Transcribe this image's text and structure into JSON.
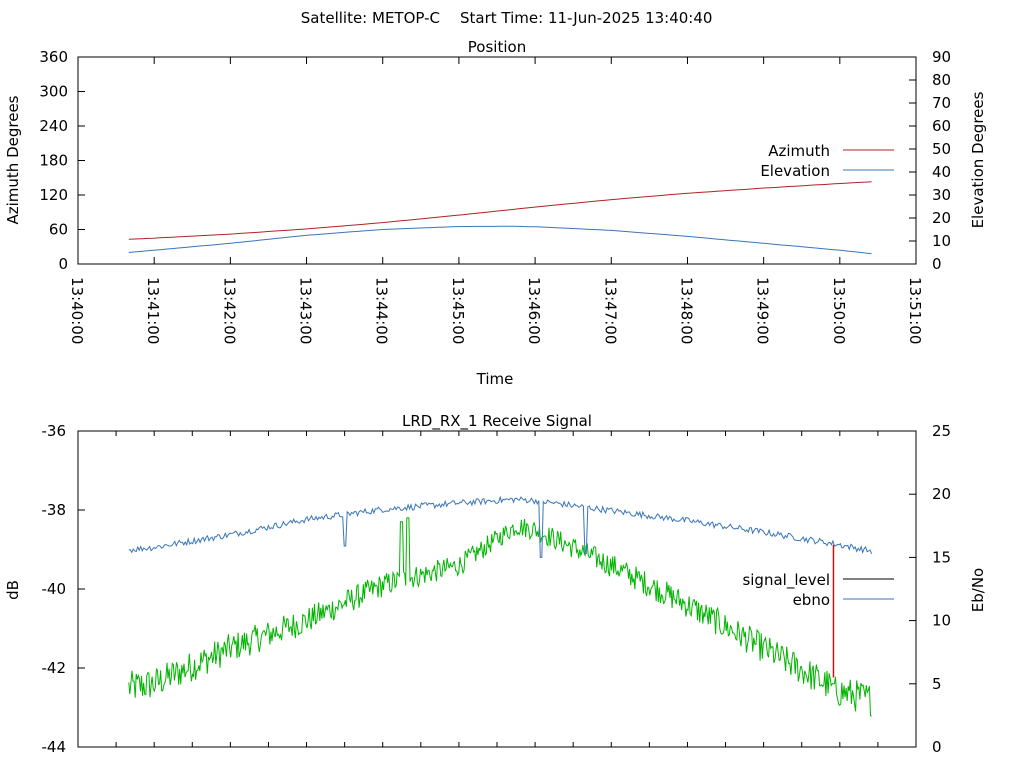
{
  "header": {
    "satellite_label": "Satellite: METOP-C",
    "start_time_label": "Start Time: 11-Jun-2025 13:40:40"
  },
  "colors": {
    "azimuth": "#b22222",
    "elevation": "#3a76b8",
    "signal_level": "#000000",
    "signal_green": "#00b400",
    "ebno": "#3a76b8",
    "signal_drop": "#cc1111"
  },
  "chart_data": [
    {
      "id": "position",
      "type": "line",
      "title": "Position",
      "xlabel": "Time",
      "ylabel": "Azimuth Degrees",
      "y2label": "Elevation Degrees",
      "x_ticks": [
        "13:40:00",
        "13:41:00",
        "13:42:00",
        "13:43:00",
        "13:44:00",
        "13:45:00",
        "13:46:00",
        "13:47:00",
        "13:48:00",
        "13:49:00",
        "13:50:00",
        "13:51:00"
      ],
      "xlim": [
        "13:40:00",
        "13:51:00"
      ],
      "ylim": [
        0,
        360
      ],
      "y_ticks": [
        0,
        60,
        120,
        180,
        240,
        300,
        360
      ],
      "y2lim": [
        0,
        90
      ],
      "y2_ticks": [
        0,
        10,
        20,
        30,
        40,
        50,
        60,
        70,
        80,
        90
      ],
      "legend_position": "right",
      "series": [
        {
          "name": "Azimuth",
          "axis": "y",
          "color": "#b22222",
          "points": [
            [
              "13:40:40",
              43
            ],
            [
              "13:41:00",
              45
            ],
            [
              "13:42:00",
              52
            ],
            [
              "13:43:00",
              61
            ],
            [
              "13:44:00",
              72
            ],
            [
              "13:45:00",
              85
            ],
            [
              "13:46:00",
              99
            ],
            [
              "13:47:00",
              112
            ],
            [
              "13:48:00",
              123
            ],
            [
              "13:49:00",
              132
            ],
            [
              "13:50:00",
              140
            ],
            [
              "13:50:25",
              143
            ]
          ]
        },
        {
          "name": "Elevation",
          "axis": "y2",
          "color": "#3a76b8",
          "points": [
            [
              "13:40:40",
              5
            ],
            [
              "13:41:00",
              6
            ],
            [
              "13:42:00",
              9
            ],
            [
              "13:43:00",
              12.5
            ],
            [
              "13:44:00",
              15
            ],
            [
              "13:45:00",
              16.3
            ],
            [
              "13:45:40",
              16.4
            ],
            [
              "13:46:00",
              16.2
            ],
            [
              "13:47:00",
              14.6
            ],
            [
              "13:48:00",
              12
            ],
            [
              "13:49:00",
              9
            ],
            [
              "13:50:00",
              6
            ],
            [
              "13:50:25",
              4.5
            ]
          ]
        }
      ]
    },
    {
      "id": "receive",
      "type": "line",
      "title": "LRD_RX_1 Receive Signal",
      "ylabel": "dB",
      "y2label": "Eb/No",
      "xlim": [
        "13:40:00",
        "13:51:00"
      ],
      "ylim": [
        -44,
        -36
      ],
      "y_ticks": [
        -44,
        -42,
        -40,
        -38,
        -36
      ],
      "y2lim": [
        0,
        25
      ],
      "y2_ticks": [
        0,
        5,
        10,
        15,
        20,
        25
      ],
      "x_minor_ticks": 21,
      "legend_position": "right",
      "series": [
        {
          "name": "signal_level",
          "axis": "y",
          "color": "#00b400",
          "legend_color": "#000000",
          "points": [
            [
              "13:40:40",
              -42.5
            ],
            [
              "13:41:00",
              -42.4
            ],
            [
              "13:42:00",
              -41.5
            ],
            [
              "13:43:00",
              -40.8
            ],
            [
              "13:44:00",
              -39.9
            ],
            [
              "13:45:00",
              -39.4
            ],
            [
              "13:45:45",
              -38.4
            ],
            [
              "13:46:00",
              -38.5
            ],
            [
              "13:47:00",
              -39.4
            ],
            [
              "13:48:00",
              -40.4
            ],
            [
              "13:49:00",
              -41.5
            ],
            [
              "13:50:00",
              -42.6
            ],
            [
              "13:50:25",
              -42.8
            ]
          ],
          "spikes": [
            {
              "time": "13:44:15",
              "value": -38.3
            },
            {
              "time": "13:44:20",
              "value": -38.2
            },
            {
              "time": "13:49:55",
              "value": -42.4
            }
          ]
        },
        {
          "name": "ebno",
          "axis": "y2",
          "color": "#3a76b8",
          "points": [
            [
              "13:40:40",
              15.6
            ],
            [
              "13:41:00",
              15.8
            ],
            [
              "13:42:00",
              16.8
            ],
            [
              "13:43:00",
              18.0
            ],
            [
              "13:44:00",
              18.8
            ],
            [
              "13:45:00",
              19.3
            ],
            [
              "13:45:45",
              19.6
            ],
            [
              "13:46:00",
              19.5
            ],
            [
              "13:47:00",
              18.7
            ],
            [
              "13:48:00",
              17.9
            ],
            [
              "13:49:00",
              17.0
            ],
            [
              "13:50:00",
              16.0
            ],
            [
              "13:50:25",
              15.5
            ]
          ],
          "dips": [
            {
              "time": "13:43:30",
              "value": 15.9
            },
            {
              "time": "13:46:05",
              "value": 15.0
            },
            {
              "time": "13:46:40",
              "value": 15.3
            },
            {
              "time": "13:49:55",
              "value": 5.5
            }
          ]
        }
      ]
    }
  ]
}
